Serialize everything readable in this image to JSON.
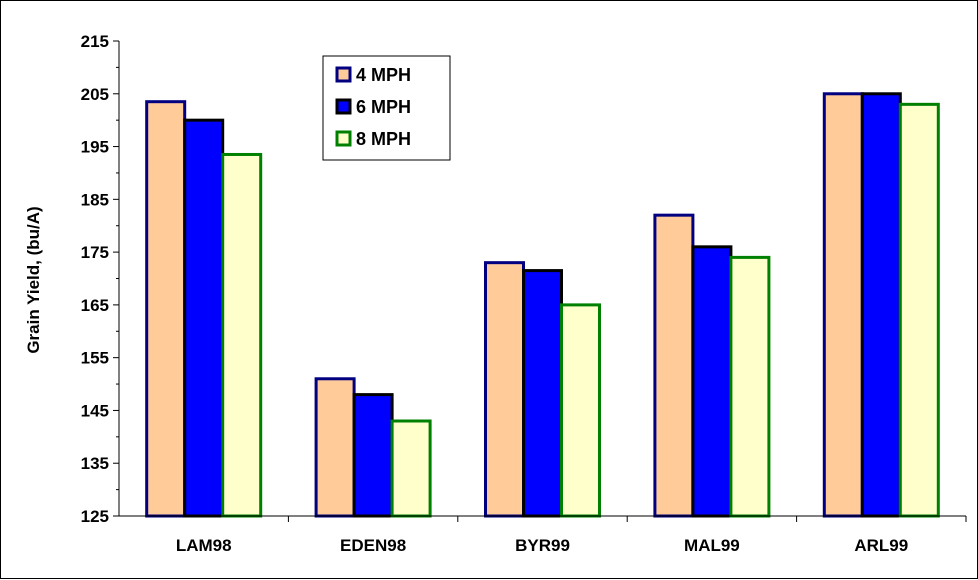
{
  "chart_data": {
    "type": "bar",
    "title": "",
    "xlabel": "",
    "ylabel": "Grain Yield, (bu/A)",
    "ylim": [
      125,
      215
    ],
    "yticks": [
      125,
      135,
      145,
      155,
      165,
      175,
      185,
      195,
      205,
      215
    ],
    "grid": false,
    "legend_position": "top-left",
    "categories": [
      "LAM98",
      "EDEN98",
      "BYR99",
      "MAL99",
      "ARL99"
    ],
    "series": [
      {
        "name": "4 MPH",
        "values": [
          203.5,
          151,
          173,
          182,
          205
        ],
        "fill": "#FFCC99",
        "stroke": "#000080"
      },
      {
        "name": "6 MPH",
        "values": [
          200,
          148,
          171.5,
          176,
          205
        ],
        "fill": "#0000FF",
        "stroke": "#000000"
      },
      {
        "name": "8 MPH",
        "values": [
          193.5,
          143,
          165,
          174,
          203
        ],
        "fill": "#FFFFCC",
        "stroke": "#008000"
      }
    ]
  }
}
